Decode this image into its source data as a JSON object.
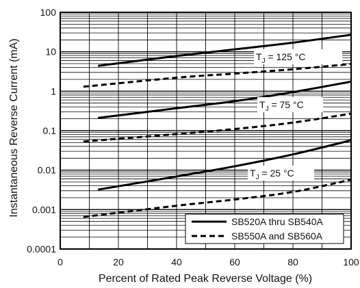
{
  "chart_data": {
    "type": "line",
    "xlabel": "Percent of Rated Peak Reverse Voltage (%)",
    "ylabel": "Instantaneous Reverse Current (mA)",
    "xlim": [
      0,
      100
    ],
    "ylim": [
      0.0001,
      100
    ],
    "yscale": "log",
    "grid": true,
    "x_ticks": [
      "0",
      "20",
      "40",
      "60",
      "80",
      "100"
    ],
    "y_ticks": [
      "0.0001",
      "0.001",
      "0.01",
      "0.1",
      "1",
      "10",
      "100"
    ],
    "legend_position": "bottom-right",
    "legend": [
      {
        "label": "SB520A thru SB540A",
        "style": "solid"
      },
      {
        "label": "SB550A and SB560A",
        "style": "dashed"
      }
    ],
    "annotations": [
      {
        "main": "T",
        "sub": "J",
        "rest": " = 125 °C"
      },
      {
        "main": "T",
        "sub": "J",
        "rest": " = 75 °C"
      },
      {
        "main": "T",
        "sub": "J",
        "rest": " = 25 °C"
      }
    ],
    "series": [
      {
        "style": "solid",
        "x": [
          13,
          40,
          60,
          80,
          100
        ],
        "y": [
          4.4,
          7.8,
          11.5,
          17,
          27
        ]
      },
      {
        "style": "dashed",
        "x": [
          8,
          40,
          60,
          80,
          100
        ],
        "y": [
          1.3,
          2.2,
          2.8,
          3.6,
          4.9
        ]
      },
      {
        "style": "solid",
        "x": [
          13,
          40,
          60,
          80,
          100
        ],
        "y": [
          0.21,
          0.37,
          0.56,
          0.95,
          1.75
        ]
      },
      {
        "style": "dashed",
        "x": [
          8,
          40,
          60,
          80,
          100
        ],
        "y": [
          0.053,
          0.082,
          0.11,
          0.16,
          0.27
        ]
      },
      {
        "style": "solid",
        "x": [
          13,
          40,
          60,
          80,
          100
        ],
        "y": [
          0.0032,
          0.0069,
          0.0125,
          0.025,
          0.057
        ]
      },
      {
        "style": "dashed",
        "x": [
          8,
          40,
          60,
          80,
          100
        ],
        "y": [
          0.00065,
          0.00125,
          0.0018,
          0.0028,
          0.0057
        ]
      }
    ]
  }
}
